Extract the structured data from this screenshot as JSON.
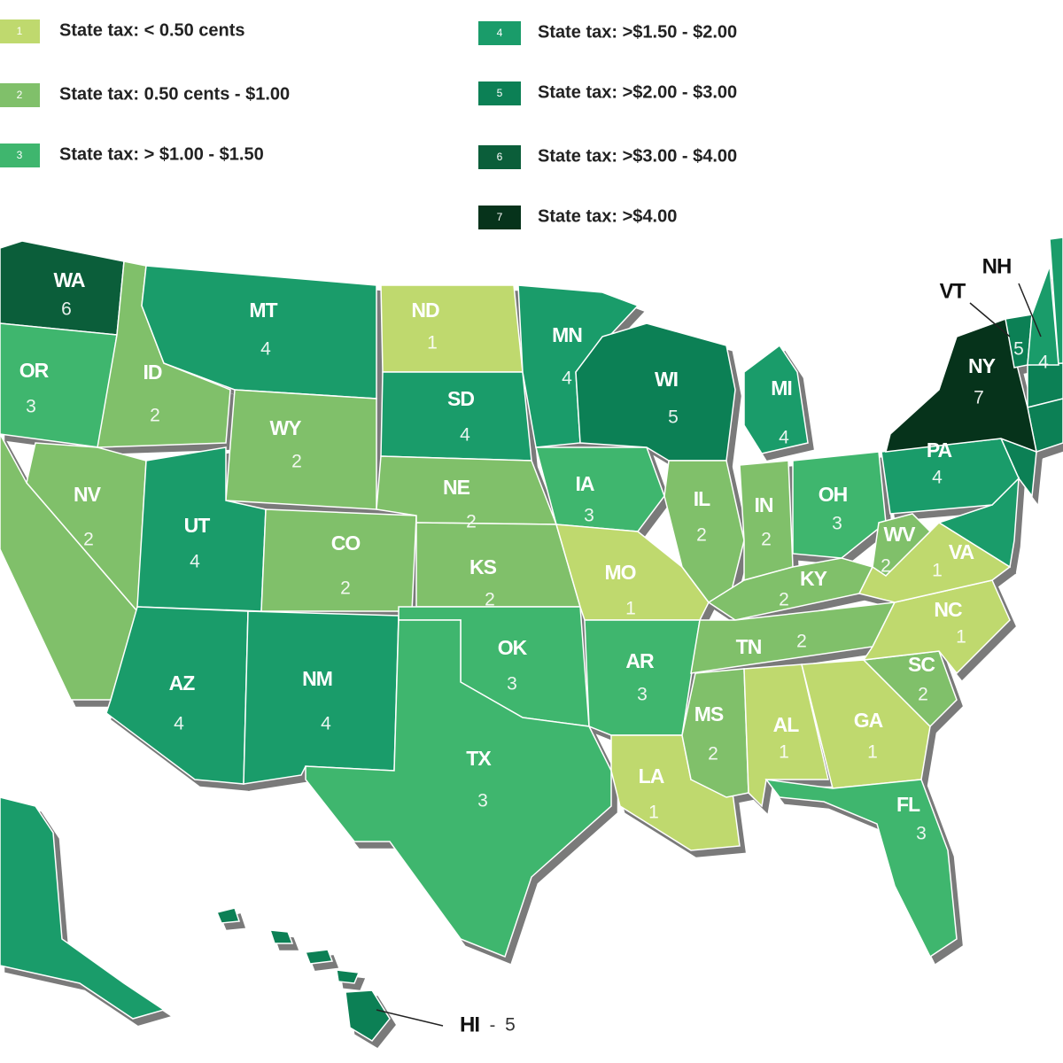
{
  "legend": [
    {
      "key": 1,
      "label": "State tax: < 0.50 cents",
      "color": "#bfd96e"
    },
    {
      "key": 2,
      "label": "State tax: 0.50 cents - $1.00",
      "color": "#80c06a"
    },
    {
      "key": 3,
      "label": "State tax: > $1.00 - $1.50",
      "color": "#3fb66e"
    },
    {
      "key": 4,
      "label": "State tax: >$1.50 - $2.00",
      "color": "#1a9c6a"
    },
    {
      "key": 5,
      "label": "State tax: >$2.00 - $3.00",
      "color": "#0c8055"
    },
    {
      "key": 6,
      "label": "State tax: >$3.00 - $4.00",
      "color": "#0b5e3a"
    },
    {
      "key": 7,
      "label": "State tax: >$4.00",
      "color": "#06331b"
    }
  ],
  "states": [
    {
      "label": "WA",
      "value": 6
    },
    {
      "label": "OR",
      "value": 3
    },
    {
      "label": "NV",
      "value": 2
    },
    {
      "label": "ID",
      "value": 2
    },
    {
      "label": "MT",
      "value": 4
    },
    {
      "label": "WY",
      "value": 2
    },
    {
      "label": "UT",
      "value": 4
    },
    {
      "label": "CO",
      "value": 2
    },
    {
      "label": "AZ",
      "value": 4
    },
    {
      "label": "NM",
      "value": 4
    },
    {
      "label": "ND",
      "value": 1
    },
    {
      "label": "SD",
      "value": 4
    },
    {
      "label": "NE",
      "value": 2
    },
    {
      "label": "KS",
      "value": 2
    },
    {
      "label": "OK",
      "value": 3
    },
    {
      "label": "TX",
      "value": 3
    },
    {
      "label": "MN",
      "value": 4
    },
    {
      "label": "IA",
      "value": 3
    },
    {
      "label": "MO",
      "value": 1
    },
    {
      "label": "AR",
      "value": 3
    },
    {
      "label": "LA",
      "value": 1
    },
    {
      "label": "WI",
      "value": 5
    },
    {
      "label": "IL",
      "value": 2
    },
    {
      "label": "MI",
      "value": 4
    },
    {
      "label": "IN",
      "value": 2
    },
    {
      "label": "OH",
      "value": 3
    },
    {
      "label": "KY",
      "value": 2
    },
    {
      "label": "TN",
      "value": 2
    },
    {
      "label": "MS",
      "value": 2
    },
    {
      "label": "AL",
      "value": 1
    },
    {
      "label": "GA",
      "value": 1
    },
    {
      "label": "FL",
      "value": 3
    },
    {
      "label": "SC",
      "value": 2
    },
    {
      "label": "NC",
      "value": 1
    },
    {
      "label": "VA",
      "value": 1
    },
    {
      "label": "WV",
      "value": 2
    },
    {
      "label": "PA",
      "value": 4
    },
    {
      "label": "NY",
      "value": 7
    },
    {
      "label": "VT",
      "value": 5
    },
    {
      "label": "NH",
      "value": 4
    }
  ],
  "hawaii": {
    "label": "HI",
    "separator": "-",
    "value": 5
  }
}
